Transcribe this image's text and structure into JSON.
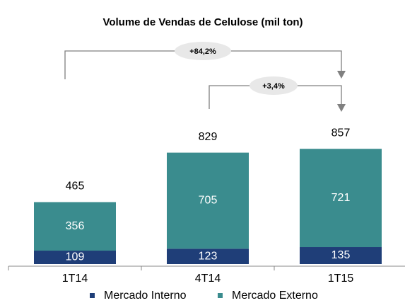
{
  "chart_data": {
    "type": "stacked_bar",
    "title": "Volume de Vendas de Celulose (mil ton)",
    "categories": [
      "1T14",
      "4T14",
      "1T15"
    ],
    "series": [
      {
        "name": "Mercado Interno",
        "color": "#1f3e78",
        "values": [
          109,
          123,
          135
        ]
      },
      {
        "name": "Mercado Externo",
        "color": "#3a8c8e",
        "values": [
          356,
          705,
          721
        ]
      }
    ],
    "totals": [
      465,
      829,
      857
    ],
    "annotations": [
      "+84,2%",
      "+3,4%"
    ]
  }
}
